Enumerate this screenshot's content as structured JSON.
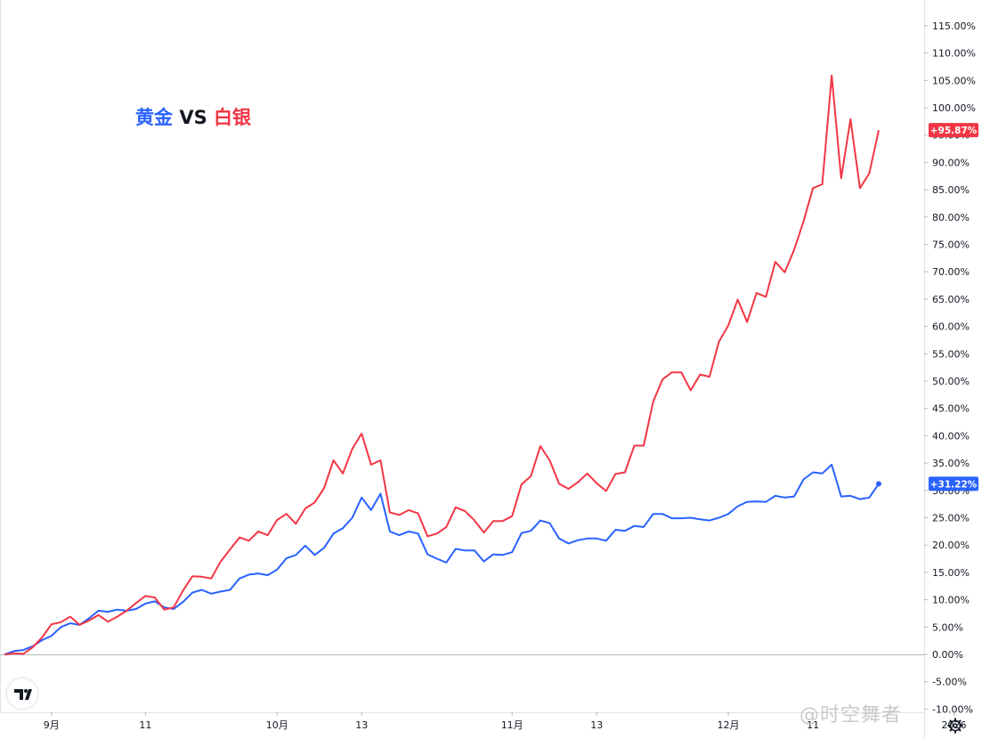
{
  "title": {
    "gold": "黄金",
    "vs": "VS",
    "silver": "白银"
  },
  "watermark": "@时空舞者",
  "colors": {
    "gold_series": "#2962ff",
    "silver_series": "#f23645",
    "axis_text": "#131722"
  },
  "icons": {
    "logo": "tradingview-logo-icon",
    "settings": "gear-icon"
  },
  "chart_data": {
    "type": "line",
    "y_unit": "%",
    "ylim": [
      -12.5,
      118
    ],
    "y_ticks": [
      -10,
      -5,
      0,
      5,
      10,
      15,
      20,
      25,
      30,
      35,
      40,
      45,
      50,
      55,
      60,
      65,
      70,
      75,
      80,
      85,
      90,
      95,
      100,
      105,
      110,
      115
    ],
    "y_tick_labels": [
      "-10.00%",
      "-5.00%",
      "0.00%",
      "5.00%",
      "10.00%",
      "15.00%",
      "20.00%",
      "25.00%",
      "30.00%",
      "35.00%",
      "40.00%",
      "45.00%",
      "50.00%",
      "55.00%",
      "60.00%",
      "65.00%",
      "70.00%",
      "75.00%",
      "80.00%",
      "85.00%",
      "90.00%",
      "95.00%",
      "100.00%",
      "105.00%",
      "110.00%",
      "115.00%"
    ],
    "x_ticks": [
      {
        "label": "9月",
        "index": 5
      },
      {
        "label": "11",
        "index": 15
      },
      {
        "label": "10月",
        "index": 29
      },
      {
        "label": "13",
        "index": 38
      },
      {
        "label": "11月",
        "index": 54
      },
      {
        "label": "13",
        "index": 63
      },
      {
        "label": "12月",
        "index": 77
      },
      {
        "label": "11",
        "index": 86
      },
      {
        "label": "2026",
        "index": 101
      }
    ],
    "grid": false,
    "legend": "none",
    "series": [
      {
        "key": "gold",
        "color": "#2962ff",
        "last_label": "+31.22%",
        "values": [
          0,
          0.6,
          0.8,
          1.5,
          2.6,
          3.4,
          5.0,
          5.7,
          5.4,
          6.6,
          8.0,
          7.8,
          8.2,
          8.0,
          8.3,
          9.3,
          9.7,
          8.6,
          8.3,
          9.6,
          11.3,
          11.8,
          11.1,
          11.5,
          11.8,
          13.9,
          14.6,
          14.8,
          14.5,
          15.5,
          17.6,
          18.2,
          19.9,
          18.2,
          19.5,
          22.1,
          23.1,
          25.0,
          28.7,
          26.4,
          29.4,
          22.5,
          21.8,
          22.5,
          22.1,
          18.3,
          17.5,
          16.8,
          19.3,
          19.0,
          19.0,
          17.0,
          18.3,
          18.2,
          18.7,
          22.2,
          22.6,
          24.5,
          24.0,
          21.2,
          20.3,
          20.9,
          21.2,
          21.2,
          20.8,
          22.8,
          22.6,
          23.5,
          23.3,
          25.7,
          25.7,
          24.9,
          24.9,
          25.0,
          24.7,
          24.5,
          25.0,
          25.7,
          27.1,
          27.9,
          28.0,
          27.9,
          29.0,
          28.7,
          28.9,
          32.0,
          33.3,
          33.1,
          34.7,
          28.9,
          29.0,
          28.4,
          28.7,
          31.2
        ]
      },
      {
        "key": "silver",
        "color": "#f23645",
        "last_label": "+95.87%",
        "values": [
          0,
          0.2,
          0.1,
          1.3,
          3.1,
          5.5,
          5.9,
          6.9,
          5.4,
          6.2,
          7.2,
          6.0,
          6.9,
          8.0,
          9.4,
          10.7,
          10.4,
          8.2,
          8.6,
          11.7,
          14.3,
          14.2,
          13.9,
          17.0,
          19.2,
          21.4,
          20.8,
          22.5,
          21.8,
          24.6,
          25.7,
          23.9,
          26.7,
          27.8,
          30.4,
          35.5,
          33.1,
          37.6,
          40.4,
          34.7,
          35.5,
          26.0,
          25.5,
          26.4,
          25.8,
          21.6,
          22.1,
          23.3,
          26.9,
          26.2,
          24.5,
          22.3,
          24.4,
          24.4,
          25.3,
          31.1,
          32.6,
          38.1,
          35.5,
          31.2,
          30.3,
          31.5,
          33.1,
          31.3,
          29.9,
          33.0,
          33.3,
          38.2,
          38.2,
          46.2,
          50.3,
          51.6,
          51.6,
          48.3,
          51.2,
          50.8,
          57.2,
          60.2,
          64.9,
          60.8,
          66.1,
          65.4,
          71.8,
          69.9,
          74.0,
          79.2,
          85.3,
          86.0,
          105.9,
          87.1,
          97.9,
          85.3,
          88.0,
          95.9
        ]
      }
    ]
  }
}
